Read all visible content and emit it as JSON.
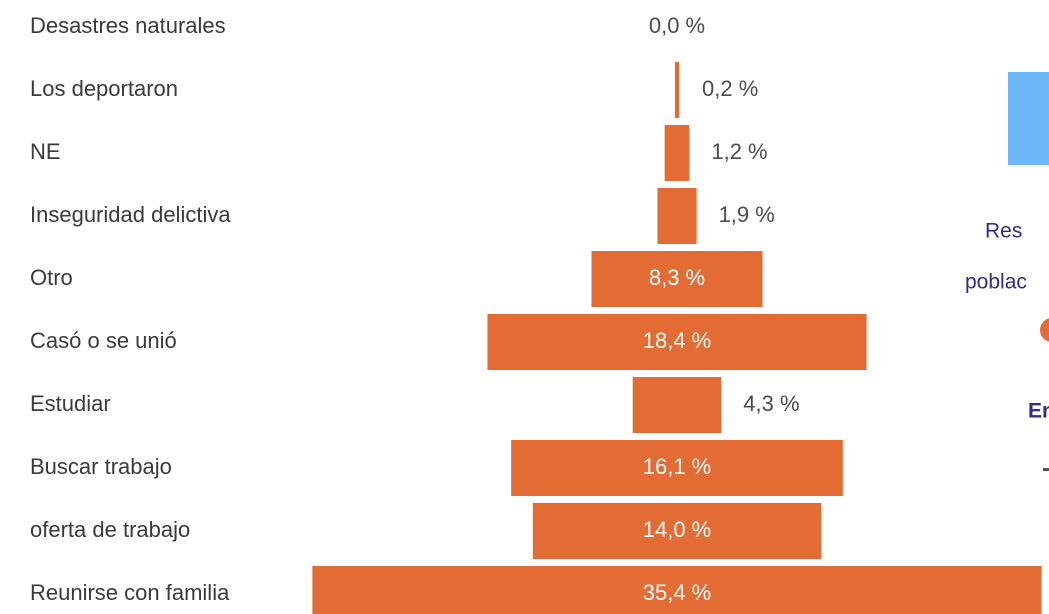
{
  "chart_data": {
    "type": "bar",
    "orientation": "horizontal-centered",
    "categories": [
      "Desastres naturales",
      "Los deportaron",
      "NE",
      "Inseguridad delictiva",
      "Otro",
      "Casó o se unió",
      "Estudiar",
      "Buscar trabajo",
      "oferta de trabajo",
      "Reunirse con familia"
    ],
    "values": [
      0.0,
      0.2,
      1.2,
      1.9,
      8.3,
      18.4,
      4.3,
      16.1,
      14.0,
      35.4
    ],
    "value_labels": [
      "0,0 %",
      "0,2 %",
      "1,2 %",
      "1,9 %",
      "8,3 %",
      "18,4 %",
      "4,3 %",
      "16,1 %",
      "14,0 %",
      "35,4 %"
    ],
    "color": "#e36c35"
  },
  "side_panel": {
    "texts": [
      "Res",
      "poblac",
      "En"
    ]
  }
}
